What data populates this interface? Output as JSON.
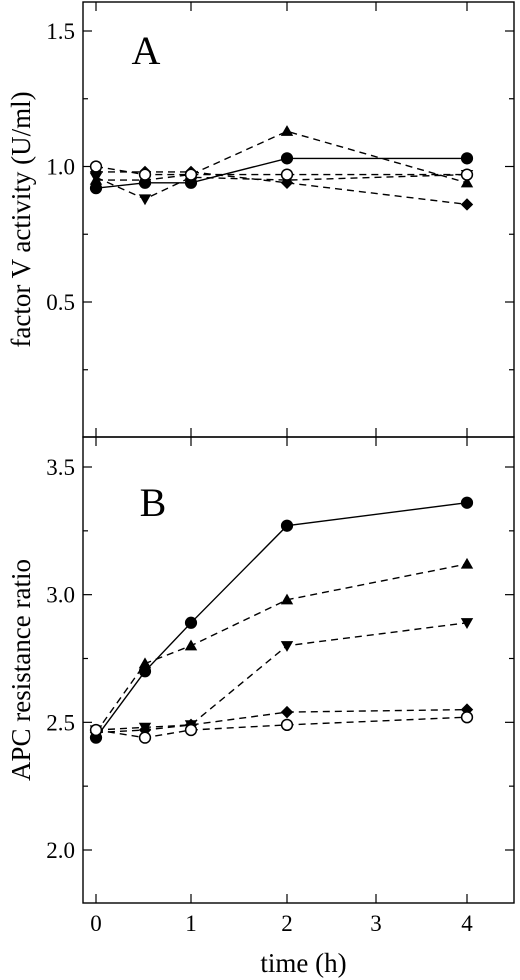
{
  "chart_data": [
    {
      "panel_label": "A",
      "type": "line",
      "ylabel": "factor V activity (U/ml)",
      "xlabel": "",
      "x": [
        0,
        0.5,
        1,
        2,
        4
      ],
      "x_tick_labels": [
        "0",
        "1",
        "2",
        "3",
        "4"
      ],
      "x_tick_values": [
        0,
        1,
        2,
        3,
        4
      ],
      "y_tick_labels": [
        "0.5",
        "1.0",
        "1.5"
      ],
      "y_tick_values": [
        0.5,
        1.0,
        1.5
      ],
      "ylim": [
        0.0,
        1.6
      ],
      "grid": false,
      "series": [
        {
          "marker": "filled-circle",
          "line": "solid",
          "values": [
            0.92,
            0.94,
            0.94,
            1.03,
            1.03
          ]
        },
        {
          "marker": "filled-triangle-up",
          "line": "dashed",
          "values": [
            0.95,
            0.95,
            0.97,
            1.13,
            0.94
          ]
        },
        {
          "marker": "filled-triangle-down",
          "line": "dashed",
          "values": [
            0.96,
            0.88,
            0.96,
            0.95,
            0.97
          ]
        },
        {
          "marker": "filled-diamond",
          "line": "dashed",
          "values": [
            0.98,
            0.98,
            0.98,
            0.94,
            0.86
          ]
        },
        {
          "marker": "open-circle",
          "line": "dashed",
          "values": [
            1.0,
            0.97,
            0.97,
            0.97,
            0.97
          ]
        }
      ]
    },
    {
      "panel_label": "B",
      "type": "line",
      "ylabel": "APC resistance ratio",
      "xlabel": "time (h)",
      "x": [
        0,
        0.5,
        1,
        2,
        4
      ],
      "x_tick_labels": [
        "0",
        "1",
        "2",
        "3",
        "4"
      ],
      "x_tick_values": [
        0,
        1,
        2,
        3,
        4
      ],
      "y_tick_labels": [
        "2.0",
        "2.5",
        "3.0",
        "3.5"
      ],
      "y_tick_values": [
        2.0,
        2.5,
        3.0,
        3.5
      ],
      "ylim": [
        1.85,
        3.65
      ],
      "grid": false,
      "series": [
        {
          "marker": "filled-circle",
          "line": "solid",
          "values": [
            2.44,
            2.7,
            2.89,
            3.27,
            3.36
          ]
        },
        {
          "marker": "filled-triangle-up",
          "line": "dashed",
          "values": [
            2.46,
            2.73,
            2.8,
            2.98,
            3.12
          ]
        },
        {
          "marker": "filled-triangle-down",
          "line": "dashed",
          "values": [
            2.47,
            2.48,
            2.49,
            2.8,
            2.89
          ]
        },
        {
          "marker": "filled-diamond",
          "line": "dashed",
          "values": [
            2.46,
            2.47,
            2.49,
            2.54,
            2.55
          ]
        },
        {
          "marker": "open-circle",
          "line": "dashed",
          "values": [
            2.47,
            2.44,
            2.47,
            2.49,
            2.52
          ]
        }
      ]
    }
  ]
}
